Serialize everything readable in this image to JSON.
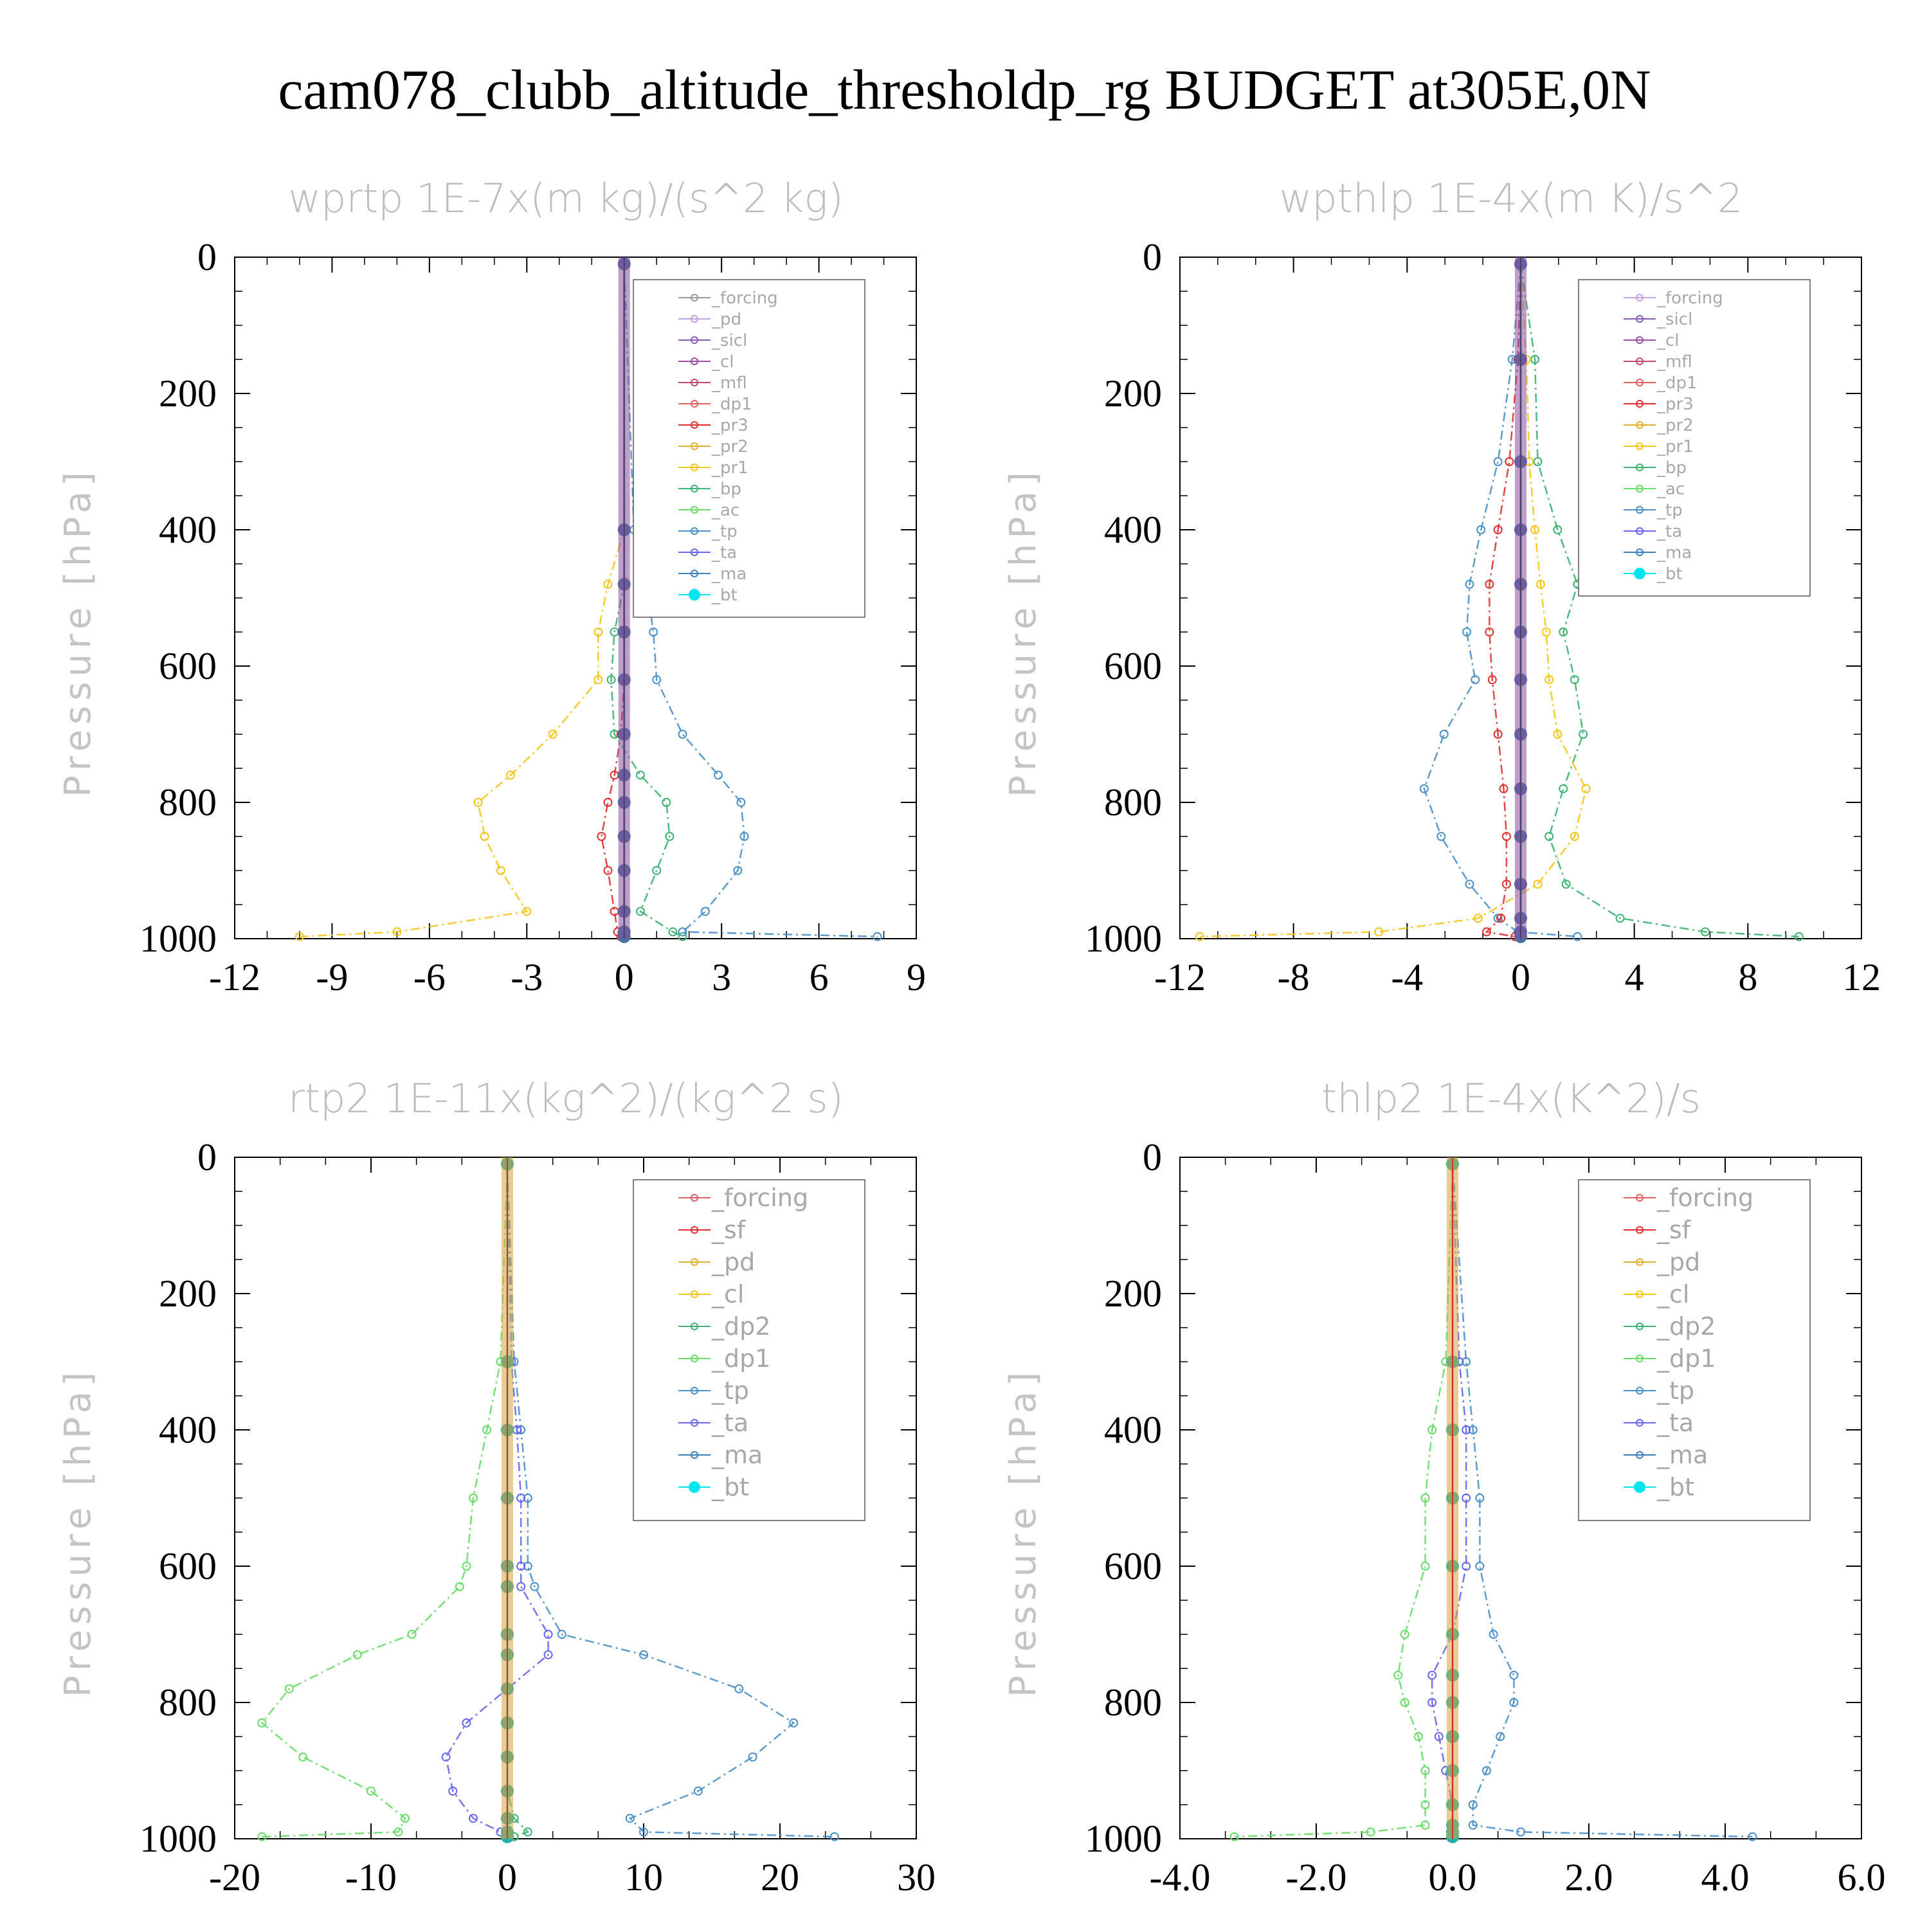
{
  "title": "cam078_clubb_altitude_thresholdp_rg  BUDGET at305E,0N",
  "chart_data": [
    {
      "type": "line",
      "title": "wprtp   1E-7x(m kg)/(s^2 kg)",
      "ylabel": "Pressure [hPa]",
      "xlim": [
        -12,
        9
      ],
      "xticks": [
        "-12",
        "-9",
        "-6",
        "-3",
        "0",
        "3",
        "6",
        "9"
      ],
      "ylim": [
        0,
        1000
      ],
      "yticks": [
        "0",
        "200",
        "400",
        "600",
        "800",
        "1000"
      ],
      "legend_position": "top-right",
      "legend": [
        "_forcing",
        "_pd",
        "_sicl",
        "_cl",
        "_mfl",
        "_dp1",
        "_pr3",
        "_pr2",
        "_pr1",
        "_bp",
        "_ac",
        "_tp",
        "_ta",
        "_ma",
        "_bt"
      ],
      "levels": [
        10,
        400,
        480,
        550,
        620,
        700,
        760,
        800,
        850,
        900,
        960,
        990,
        997
      ],
      "series": [
        {
          "name": "_pr1",
          "color": "#f5c518",
          "values": [
            0,
            0,
            -0.5,
            -0.8,
            -0.8,
            -2.2,
            -3.5,
            -4.5,
            -4.3,
            -3.8,
            -3.0,
            -7.0,
            -10.0
          ]
        },
        {
          "name": "_bp",
          "color": "#3cb371",
          "values": [
            0,
            0,
            0,
            -0.3,
            -0.4,
            -0.3,
            0.5,
            1.3,
            1.4,
            1.0,
            0.5,
            1.5,
            1.8
          ]
        },
        {
          "name": "_tp",
          "color": "#4a90c8",
          "values": [
            0,
            0.3,
            0.7,
            0.9,
            1.0,
            1.8,
            2.9,
            3.6,
            3.7,
            3.5,
            2.5,
            1.8,
            7.8
          ]
        },
        {
          "name": "_pr3",
          "color": "#e03030",
          "values": [
            0,
            0,
            0,
            0,
            0,
            -0.1,
            -0.3,
            -0.5,
            -0.7,
            -0.5,
            -0.3,
            -0.2,
            -0.1
          ]
        },
        {
          "name": "_bt",
          "color": "#4a6fa0",
          "values": [
            0,
            0,
            0,
            0,
            0,
            0,
            0,
            0,
            0,
            0,
            0,
            0,
            0
          ]
        }
      ]
    },
    {
      "type": "line",
      "title": "wpthlp   1E-4x(m K)/s^2",
      "ylabel": "Pressure [hPa]",
      "xlim": [
        -12,
        12
      ],
      "xticks": [
        "-12",
        "-8",
        "-4",
        "0",
        "4",
        "8",
        "12"
      ],
      "ylim": [
        0,
        1000
      ],
      "yticks": [
        "0",
        "200",
        "400",
        "600",
        "800",
        "1000"
      ],
      "legend_position": "top-right",
      "legend": [
        "_forcing",
        "_sicl",
        "_cl",
        "_mfl",
        "_dp1",
        "_pr3",
        "_pr2",
        "_pr1",
        "_bp",
        "_ac",
        "_tp",
        "_ta",
        "_ma",
        "_bt"
      ],
      "levels": [
        10,
        150,
        300,
        400,
        480,
        550,
        620,
        700,
        780,
        850,
        920,
        970,
        990,
        997
      ],
      "series": [
        {
          "name": "_bp",
          "color": "#3cb371",
          "values": [
            0,
            0.5,
            0.6,
            1.3,
            2.0,
            1.5,
            1.9,
            2.2,
            1.5,
            1.0,
            1.6,
            3.5,
            6.5,
            9.8
          ]
        },
        {
          "name": "_tp",
          "color": "#4a90c8",
          "values": [
            0,
            -0.3,
            -0.8,
            -1.4,
            -1.8,
            -1.9,
            -1.6,
            -2.7,
            -3.4,
            -2.8,
            -1.8,
            -0.8,
            -0.1,
            2.0
          ]
        },
        {
          "name": "_pr1",
          "color": "#f5c518",
          "values": [
            0,
            0.2,
            0.3,
            0.5,
            0.7,
            0.9,
            1.0,
            1.3,
            2.3,
            1.9,
            0.6,
            -1.5,
            -5.0,
            -11.3
          ]
        },
        {
          "name": "_pr3",
          "color": "#e03030",
          "values": [
            0,
            -0.1,
            -0.4,
            -0.8,
            -1.1,
            -1.1,
            -1.0,
            -0.8,
            -0.6,
            -0.5,
            -0.5,
            -0.7,
            -1.2,
            -0.2
          ]
        },
        {
          "name": "_bt",
          "color": "#4a6fa0",
          "values": [
            0,
            0,
            0,
            0,
            0,
            0,
            0,
            0,
            0,
            0,
            0,
            0,
            0,
            0
          ]
        }
      ]
    },
    {
      "type": "line",
      "title": "rtp2   1E-11x(kg^2)/(kg^2 s)",
      "ylabel": "Pressure [hPa]",
      "xlim": [
        -20,
        30
      ],
      "xticks": [
        "-20",
        "-10",
        "0",
        "10",
        "20",
        "30"
      ],
      "ylim": [
        0,
        1000
      ],
      "yticks": [
        "0",
        "200",
        "400",
        "600",
        "800",
        "1000"
      ],
      "legend_position": "top-right",
      "legend": [
        "_forcing",
        "_sf",
        "_pd",
        "_cl",
        "_dp2",
        "_dp1",
        "_tp",
        "_ta",
        "_ma",
        "_bt"
      ],
      "levels": [
        10,
        300,
        400,
        500,
        600,
        630,
        700,
        730,
        780,
        830,
        880,
        930,
        970,
        990,
        997
      ],
      "series": [
        {
          "name": "_dp1",
          "color": "#66dd66",
          "values": [
            0,
            -0.5,
            -1.5,
            -2.5,
            -3.0,
            -3.5,
            -7.0,
            -11.0,
            -16.0,
            -18.0,
            -15.0,
            -10.0,
            -7.5,
            -8.0,
            -18.0
          ]
        },
        {
          "name": "_tp",
          "color": "#4a90c8",
          "values": [
            0,
            0.5,
            1.0,
            1.5,
            1.5,
            2.0,
            4.0,
            10.0,
            17.0,
            21.0,
            18.0,
            14.0,
            9.0,
            10.0,
            24.0
          ]
        },
        {
          "name": "_ta",
          "color": "#6666ee",
          "values": [
            0,
            0.3,
            0.7,
            1.0,
            1.0,
            1.0,
            3.0,
            3.0,
            0.0,
            -3.0,
            -4.5,
            -4.0,
            -2.5,
            -0.5,
            0.0
          ]
        },
        {
          "name": "_dp2",
          "color": "#3cb371",
          "values": [
            0,
            0,
            0,
            0,
            0,
            0,
            0,
            0,
            0,
            0,
            0,
            0,
            0.5,
            1.5,
            0.5
          ]
        },
        {
          "name": "_bt",
          "color": "#20b2aa",
          "values": [
            0,
            0,
            0,
            0,
            0,
            0,
            0,
            0,
            0,
            0,
            0,
            0,
            0,
            0,
            0
          ]
        }
      ]
    },
    {
      "type": "line",
      "title": "thlp2   1E-4x(K^2)/s",
      "ylabel": "Pressure [hPa]",
      "xlim": [
        -4.0,
        6.0
      ],
      "xticks": [
        "-4.0",
        "-2.0",
        "0.0",
        "2.0",
        "4.0",
        "6.0"
      ],
      "ylim": [
        0,
        1000
      ],
      "yticks": [
        "0",
        "200",
        "400",
        "600",
        "800",
        "1000"
      ],
      "legend_position": "top-right",
      "legend": [
        "_forcing",
        "_sf",
        "_pd",
        "_cl",
        "_dp2",
        "_dp1",
        "_tp",
        "_ta",
        "_ma",
        "_bt"
      ],
      "levels": [
        10,
        300,
        400,
        500,
        600,
        700,
        760,
        800,
        850,
        900,
        950,
        980,
        990,
        997
      ],
      "series": [
        {
          "name": "_dp1",
          "color": "#66dd66",
          "values": [
            0,
            -0.1,
            -0.3,
            -0.4,
            -0.4,
            -0.7,
            -0.8,
            -0.7,
            -0.5,
            -0.4,
            -0.4,
            -0.4,
            -1.2,
            -3.2
          ]
        },
        {
          "name": "_tp",
          "color": "#4a90c8",
          "values": [
            0,
            0.2,
            0.3,
            0.4,
            0.4,
            0.6,
            0.9,
            0.9,
            0.7,
            0.5,
            0.3,
            0.3,
            1.0,
            4.4
          ]
        },
        {
          "name": "_ta",
          "color": "#6666ee",
          "values": [
            0,
            0.1,
            0.2,
            0.2,
            0.2,
            0.0,
            -0.3,
            -0.3,
            -0.2,
            -0.1,
            0.0,
            0.0,
            0.0,
            0.0
          ]
        },
        {
          "name": "_bt",
          "color": "#20b2aa",
          "values": [
            0,
            0,
            0,
            0,
            0,
            0,
            0,
            0,
            0,
            0,
            0,
            0,
            0,
            0
          ]
        }
      ]
    }
  ]
}
